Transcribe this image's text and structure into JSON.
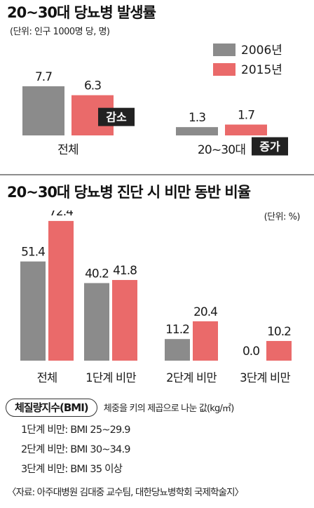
{
  "colors": {
    "gray": "#8b8b8b",
    "red": "#ea6a6a",
    "tag_bg": "#222222",
    "tag_text": "#ffffff"
  },
  "chart_data": [
    {
      "type": "bar",
      "title": "20~30대 당뇨병 발생률",
      "unit": "(단위: 인구 1000명 당, 명)",
      "categories": [
        "전체",
        "20~30대"
      ],
      "series": [
        {
          "name": "2006년",
          "values": [
            7.7,
            1.3
          ]
        },
        {
          "name": "2015년",
          "values": [
            6.3,
            1.7
          ]
        }
      ],
      "annotations": [
        "감소",
        "증가"
      ],
      "legend": "top-right"
    },
    {
      "type": "bar",
      "title": "20~30대 당뇨병 진단 시 비만 동반 비율",
      "unit": "(단위: %)",
      "categories": [
        "전체",
        "1단계 비만",
        "2단계 비만",
        "3단계 비만"
      ],
      "series": [
        {
          "name": "2006년",
          "values": [
            51.4,
            40.2,
            11.2,
            0.0
          ]
        },
        {
          "name": "2015년",
          "values": [
            72.4,
            41.8,
            20.4,
            10.2
          ]
        }
      ]
    }
  ],
  "labels": {
    "c1": [
      [
        "7.7",
        "1.3"
      ],
      [
        "6.3",
        "1.7"
      ]
    ],
    "c2": [
      [
        "51.4",
        "40.2",
        "11.2",
        "0.0"
      ],
      [
        "72.4",
        "41.8",
        "20.4",
        "10.2"
      ]
    ]
  },
  "bmi": {
    "box_label": "체질량지수(BMI)",
    "desc": "체중을 키의 제곱으로 나눈 값(kg/㎡)",
    "rows": [
      "1단계 비만: BMI 25~29.9",
      "2단계 비만: BMI 30~34.9",
      "3단계 비만: BMI 35 이상"
    ]
  },
  "source": "〈자료: 아주대병원 김대중 교수팀, 대한당뇨병학회 국제학술지〉"
}
